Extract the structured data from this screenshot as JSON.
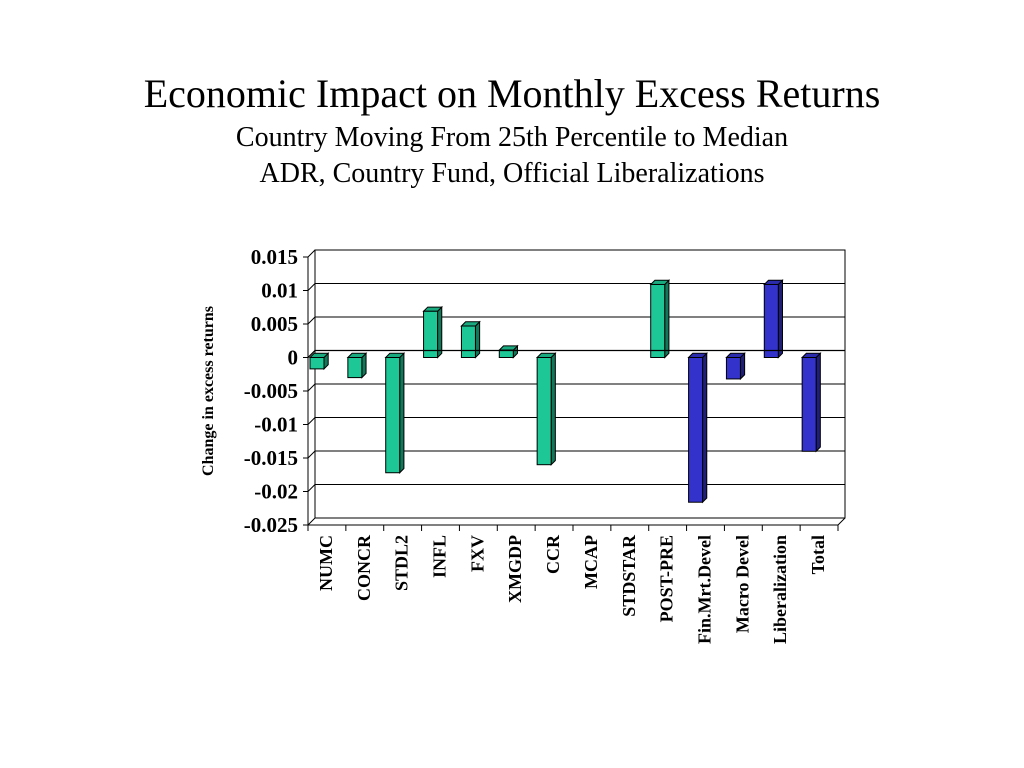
{
  "slide": {
    "title": "Economic Impact on Monthly Excess Returns",
    "subtitle_1": "Country Moving From 25th Percentile to Median",
    "subtitle_2": "ADR, Country Fund, Official Liberalizations"
  },
  "chart_data": {
    "type": "bar",
    "title": "",
    "xlabel": "",
    "ylabel": "Change in excess returns",
    "ylim": [
      -0.025,
      0.015
    ],
    "yticks": [
      0.015,
      0.01,
      0.005,
      0,
      -0.005,
      -0.01,
      -0.015,
      -0.02,
      -0.025
    ],
    "ytick_labels": [
      "0.015",
      "0.01",
      "0.005",
      "0",
      "-0.005",
      "-0.01",
      "-0.015",
      "-0.02",
      "-0.025"
    ],
    "grid": true,
    "legend": "none",
    "categories": [
      "NUMC",
      "CONCR",
      "STDL2",
      "INFL",
      "FXV",
      "XMGDP",
      "CCR",
      "MCAP",
      "STDSTAR",
      "POST-PRE",
      "Fin.Mrt.Devel",
      "Macro Devel",
      "Liberalization",
      "Total"
    ],
    "values": [
      -0.0017,
      -0.003,
      -0.0172,
      0.0069,
      0.0047,
      0.0011,
      -0.016,
      0,
      0,
      0.0109,
      -0.0216,
      -0.0032,
      0.0109,
      -0.014
    ],
    "bar_colors": [
      "#1ec896",
      "#1ec896",
      "#1ec896",
      "#1ec896",
      "#1ec896",
      "#1ec896",
      "#1ec896",
      "#1ec896",
      "#1ec896",
      "#1ec896",
      "#3333cc",
      "#3333cc",
      "#3333cc",
      "#3333cc"
    ]
  }
}
